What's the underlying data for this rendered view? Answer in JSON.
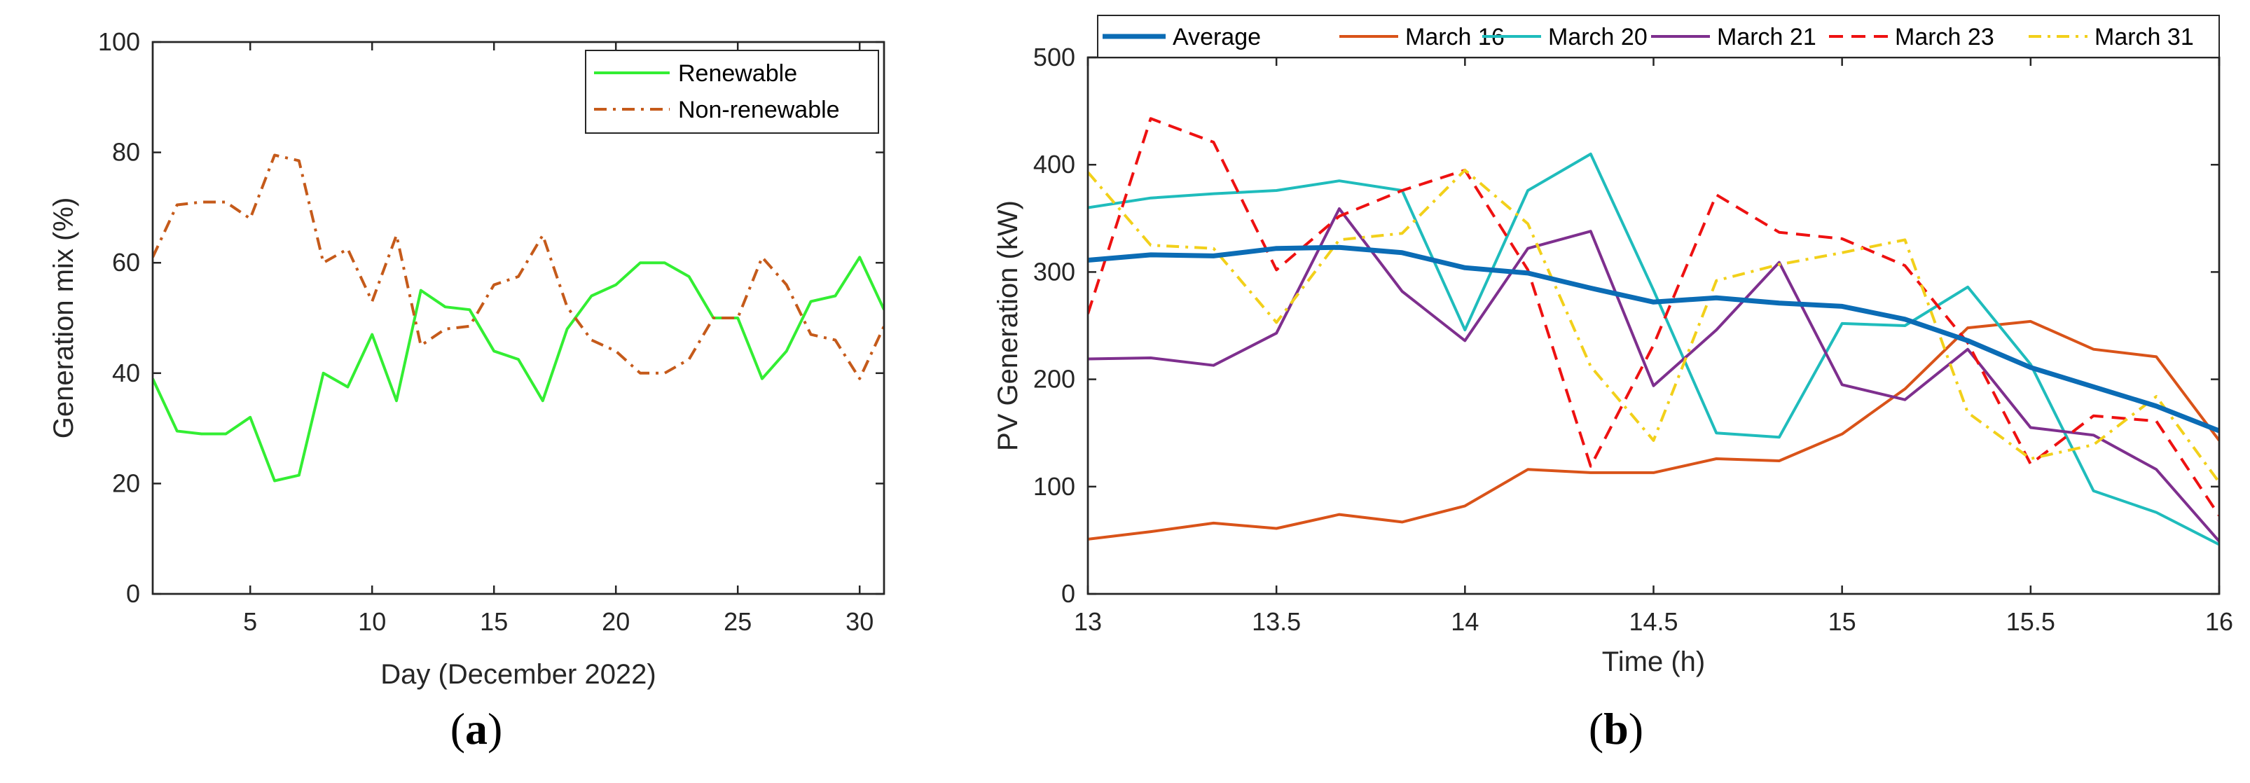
{
  "chart_data": [
    {
      "type": "line",
      "panel_label": "(a)",
      "panel_letter": "a",
      "xlabel": "Day (December 2022)",
      "ylabel": "Generation mix (%)",
      "xlim": [
        1,
        31
      ],
      "ylim": [
        0,
        100
      ],
      "xticks": [
        5,
        10,
        15,
        20,
        25,
        30
      ],
      "yticks": [
        0,
        20,
        40,
        60,
        80,
        100
      ],
      "grid": false,
      "legend_position": "top-right",
      "x": [
        1,
        2,
        3,
        4,
        5,
        6,
        7,
        8,
        9,
        10,
        11,
        12,
        13,
        14,
        15,
        16,
        17,
        18,
        19,
        20,
        21,
        22,
        23,
        24,
        25,
        26,
        27,
        28,
        29,
        30,
        31
      ],
      "series": [
        {
          "name": "Renewable",
          "color": "#33ee33",
          "style": "solid",
          "width": 4,
          "values": [
            39,
            29.5,
            29,
            29,
            32,
            20.5,
            21.5,
            40,
            37.5,
            47,
            35,
            55,
            52,
            51.5,
            44,
            42.5,
            35,
            48,
            54,
            56,
            60,
            60,
            57.5,
            50,
            50,
            39,
            44,
            53,
            54,
            61,
            51.5
          ]
        },
        {
          "name": "Non-renewable",
          "color": "#c55a1a",
          "style": "dashdot",
          "width": 4,
          "values": [
            61,
            70.5,
            71,
            71,
            68,
            79.5,
            78.5,
            60,
            62.5,
            53,
            65,
            45,
            48,
            48.5,
            56,
            57.5,
            65,
            52,
            46,
            44,
            40,
            40,
            42.5,
            50,
            50,
            61,
            56,
            47,
            46,
            39,
            48.5
          ]
        }
      ]
    },
    {
      "type": "line",
      "panel_label": "(b)",
      "panel_letter": "b",
      "xlabel": "Time (h)",
      "ylabel": "PV Generation (kW)",
      "xlim": [
        13,
        16
      ],
      "ylim": [
        0,
        500
      ],
      "xticks": [
        13,
        13.5,
        14,
        14.5,
        15,
        15.5,
        16
      ],
      "xtick_labels": [
        "13",
        "13.5",
        "14",
        "14.5",
        "15",
        "15.5",
        "16"
      ],
      "yticks": [
        0,
        100,
        200,
        300,
        400,
        500
      ],
      "grid": false,
      "legend_position": "top",
      "x": [
        13,
        13.1667,
        13.3333,
        13.5,
        13.6667,
        13.8333,
        14,
        14.1667,
        14.3333,
        14.5,
        14.6667,
        14.8333,
        15,
        15.1667,
        15.3333,
        15.5,
        15.6667,
        15.8333,
        16
      ],
      "series": [
        {
          "name": "Average",
          "color": "#0b6cb5",
          "style": "solid",
          "width": 7,
          "values": [
            311,
            316,
            315,
            322,
            323,
            318,
            304,
            299,
            285,
            272,
            276,
            271,
            268,
            256,
            236,
            211,
            193,
            175,
            152
          ]
        },
        {
          "name": "March 16",
          "color": "#d95319",
          "style": "solid",
          "width": 4,
          "values": [
            51,
            58,
            66,
            61,
            74,
            67,
            82,
            116,
            113,
            113,
            126,
            124,
            149,
            191,
            248,
            254,
            228,
            221,
            143
          ]
        },
        {
          "name": "March 20",
          "color": "#1fbcbc",
          "style": "solid",
          "width": 4,
          "values": [
            360,
            369,
            373,
            376,
            385,
            376,
            246,
            376,
            410,
            283,
            150,
            146,
            252,
            250,
            286,
            214,
            96,
            76,
            46
          ]
        },
        {
          "name": "March 21",
          "color": "#7e2f8e",
          "style": "solid",
          "width": 4,
          "values": [
            219,
            220,
            213,
            243,
            359,
            282,
            236,
            322,
            338,
            194,
            246,
            309,
            195,
            181,
            228,
            155,
            148,
            116,
            49
          ]
        },
        {
          "name": "March 23",
          "color": "#ee1111",
          "style": "dashed",
          "width": 4,
          "values": [
            261,
            443,
            421,
            302,
            352,
            376,
            395,
            302,
            119,
            232,
            372,
            337,
            331,
            306,
            234,
            121,
            166,
            161,
            73
          ]
        },
        {
          "name": "March 31",
          "color": "#f2d01a",
          "style": "dashdot",
          "width": 4,
          "values": [
            393,
            325,
            322,
            253,
            330,
            336,
            395,
            345,
            212,
            143,
            292,
            307,
            318,
            330,
            169,
            126,
            139,
            184,
            104
          ]
        }
      ]
    }
  ]
}
